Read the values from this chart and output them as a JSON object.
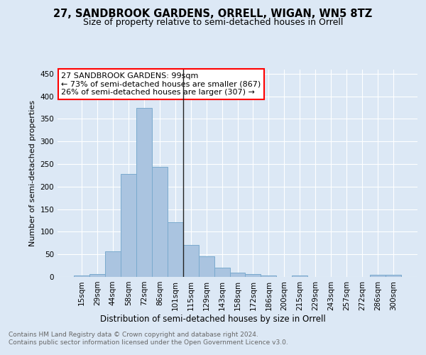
{
  "title1": "27, SANDBROOK GARDENS, ORRELL, WIGAN, WN5 8TZ",
  "title2": "Size of property relative to semi-detached houses in Orrell",
  "xlabel": "Distribution of semi-detached houses by size in Orrell",
  "ylabel": "Number of semi-detached properties",
  "footer": "Contains HM Land Registry data © Crown copyright and database right 2024.\nContains public sector information licensed under the Open Government Licence v3.0.",
  "categories": [
    "15sqm",
    "29sqm",
    "44sqm",
    "58sqm",
    "72sqm",
    "86sqm",
    "101sqm",
    "115sqm",
    "129sqm",
    "143sqm",
    "158sqm",
    "172sqm",
    "186sqm",
    "200sqm",
    "215sqm",
    "229sqm",
    "243sqm",
    "257sqm",
    "272sqm",
    "286sqm",
    "300sqm"
  ],
  "values": [
    3,
    7,
    57,
    228,
    375,
    243,
    121,
    70,
    45,
    21,
    10,
    7,
    3,
    0,
    3,
    0,
    0,
    0,
    0,
    4,
    4
  ],
  "bar_color": "#aac4e0",
  "bar_edge_color": "#7aaace",
  "vline_x": 6.5,
  "vline_color": "#222222",
  "annotation_text": "27 SANDBROOK GARDENS: 99sqm\n← 73% of semi-detached houses are smaller (867)\n26% of semi-detached houses are larger (307) →",
  "annotation_box_color": "white",
  "annotation_box_edge_color": "red",
  "ylim": [
    0,
    460
  ],
  "yticks": [
    0,
    50,
    100,
    150,
    200,
    250,
    300,
    350,
    400,
    450
  ],
  "bg_color": "#dce8f5",
  "plot_bg_color": "#dce8f5",
  "grid_color": "white",
  "title1_fontsize": 10.5,
  "title2_fontsize": 9,
  "ylabel_fontsize": 8,
  "xlabel_fontsize": 8.5,
  "tick_fontsize": 7.5,
  "footer_fontsize": 6.5,
  "annotation_fontsize": 8
}
